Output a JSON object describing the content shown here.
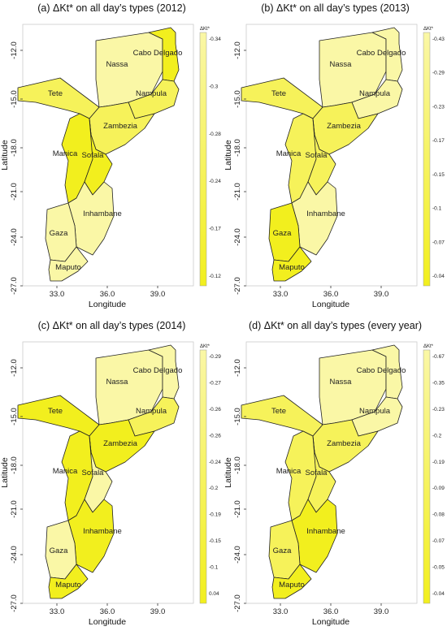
{
  "colors": {
    "map_yellow_strong": "#f2ef1e",
    "map_yellow_mid": "#f6f25a",
    "map_yellow_light": "#faf7a6",
    "border": "#222222",
    "background": "#ffffff"
  },
  "figure": {
    "x_axis_label": "Longitude",
    "y_axis_label": "Latitude",
    "x_ticks": [
      "33.0",
      "36.0",
      "39.0"
    ],
    "y_ticks": [
      "-12.0",
      "-15.0",
      "-18.0",
      "-21.0",
      "-24.0",
      "-27.0"
    ],
    "legend_title": "ΔKt*"
  },
  "panels": [
    {
      "title": "(a) ΔKt* on all day’s types (2012)",
      "legend_values": [
        "-0.34",
        "-0.3",
        "-0.28",
        "-0.24",
        "-0.17",
        "-0.12"
      ],
      "provinces": [
        {
          "name": "Nassa",
          "shade": "light"
        },
        {
          "name": "Cabo Delgado",
          "shade": "strong"
        },
        {
          "name": "Nampula",
          "shade": "mid"
        },
        {
          "name": "Tete",
          "shade": "mid"
        },
        {
          "name": "Zambezia",
          "shade": "mid"
        },
        {
          "name": "Manica",
          "shade": "strong"
        },
        {
          "name": "Sofala",
          "shade": "strong"
        },
        {
          "name": "Inhambane",
          "shade": "light"
        },
        {
          "name": "Gaza",
          "shade": "light"
        },
        {
          "name": "Maputo",
          "shade": "light"
        }
      ]
    },
    {
      "title": "(b) ΔKt* on all day’s types (2013)",
      "legend_values": [
        "-0.43",
        "-0.29",
        "-0.23",
        "-0.17",
        "-0.15",
        "-0.1",
        "-0.07",
        "-0.04"
      ],
      "provinces": [
        {
          "name": "Nassa",
          "shade": "light"
        },
        {
          "name": "Cabo Delgado",
          "shade": "light"
        },
        {
          "name": "Nampula",
          "shade": "light"
        },
        {
          "name": "Tete",
          "shade": "mid"
        },
        {
          "name": "Zambezia",
          "shade": "mid"
        },
        {
          "name": "Manica",
          "shade": "mid"
        },
        {
          "name": "Sofala",
          "shade": "mid"
        },
        {
          "name": "Inhambane",
          "shade": "light"
        },
        {
          "name": "Gaza",
          "shade": "strong"
        },
        {
          "name": "Maputo",
          "shade": "strong"
        }
      ]
    },
    {
      "title": "(c) ΔKt* on all day’s types (2014)",
      "legend_values": [
        "-0.29",
        "-0.27",
        "-0.26",
        "-0.26",
        "-0.24",
        "-0.2",
        "-0.19",
        "-0.15",
        "-0.1",
        "0.04"
      ],
      "provinces": [
        {
          "name": "Nassa",
          "shade": "light"
        },
        {
          "name": "Cabo Delgado",
          "shade": "light"
        },
        {
          "name": "Nampula",
          "shade": "mid"
        },
        {
          "name": "Tete",
          "shade": "strong"
        },
        {
          "name": "Zambezia",
          "shade": "strong"
        },
        {
          "name": "Manica",
          "shade": "strong"
        },
        {
          "name": "Sofala",
          "shade": "light"
        },
        {
          "name": "Inhambane",
          "shade": "strong"
        },
        {
          "name": "Gaza",
          "shade": "light"
        },
        {
          "name": "Maputo",
          "shade": "strong"
        }
      ]
    },
    {
      "title": "(d) ΔKt* on all day’s types (every year)",
      "legend_values": [
        "-0.67",
        "-0.35",
        "-0.23",
        "-0.2",
        "-0.19",
        "-0.09",
        "-0.08",
        "-0.07",
        "-0.05",
        "-0.04"
      ],
      "provinces": [
        {
          "name": "Nassa",
          "shade": "light"
        },
        {
          "name": "Cabo Delgado",
          "shade": "light"
        },
        {
          "name": "Nampula",
          "shade": "light"
        },
        {
          "name": "Tete",
          "shade": "mid"
        },
        {
          "name": "Zambezia",
          "shade": "mid"
        },
        {
          "name": "Manica",
          "shade": "mid"
        },
        {
          "name": "Sofala",
          "shade": "mid"
        },
        {
          "name": "Inhambane",
          "shade": "strong"
        },
        {
          "name": "Gaza",
          "shade": "mid"
        },
        {
          "name": "Maputo",
          "shade": "strong"
        }
      ]
    }
  ]
}
